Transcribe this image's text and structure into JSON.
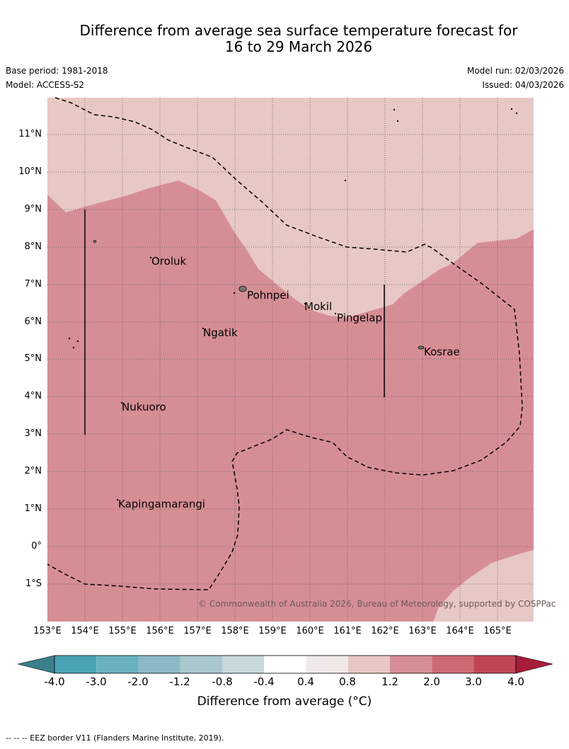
{
  "title_line1": "Difference from average sea surface temperature forecast for",
  "title_line2": "16 to 29 March 2026",
  "base_period": "Base period: 1981-2018",
  "model": "Model: ACCESS-S2",
  "model_run": "Model run: 02/03/2026",
  "issued": "Issued: 04/03/2026",
  "latitude_labels": [
    "11°N",
    "10°N",
    "9°N",
    "8°N",
    "7°N",
    "6°N",
    "5°N",
    "4°N",
    "3°N",
    "2°N",
    "1°N",
    "0°",
    "1°S"
  ],
  "longitude_labels": [
    "153°E",
    "154°E",
    "155°E",
    "156°E",
    "157°E",
    "158°E",
    "159°E",
    "160°E",
    "161°E",
    "162°E",
    "163°E",
    "164°E",
    "165°E"
  ],
  "places": [
    "Oroluk",
    "Pohnpei",
    "Mokil",
    "Pingelap",
    "Ngatik",
    "Kosrae",
    "Nukuoro",
    "Kapingamarangi"
  ],
  "copyright": "© Commonwealth of Australia 2026, Bureau of Meteorology, supported by COSPPac",
  "colorbar": {
    "ticks": [
      "-4.0",
      "-3.0",
      "-2.0",
      "-1.2",
      "-0.8",
      "-0.4",
      "0.4",
      "0.8",
      "1.2",
      "2.0",
      "3.0",
      "4.0"
    ],
    "colors": [
      "#3a7f8c",
      "#4aa3b4",
      "#6ab2c1",
      "#8cbac7",
      "#aac8ce",
      "#c8dade",
      "#ffffff",
      "#f1e9e9",
      "#e8c8c4",
      "#d68e95",
      "#cc6b76",
      "#c04656",
      "#a81c3b"
    ],
    "title": "Difference from average (°C)"
  },
  "footnote": "--  --  -- EEZ border V11 (Flanders Marine Institute, 2019).",
  "legend_colors": {
    "light_band": "#e8c8c4",
    "main_band": "#d68e95"
  }
}
